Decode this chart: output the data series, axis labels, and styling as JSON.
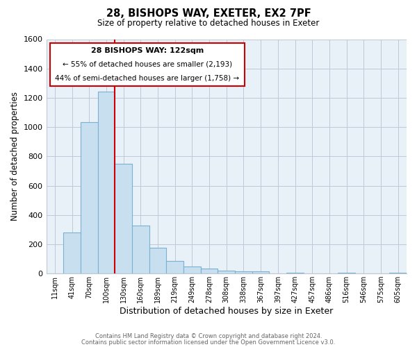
{
  "title1": "28, BISHOPS WAY, EXETER, EX2 7PF",
  "title2": "Size of property relative to detached houses in Exeter",
  "xlabel": "Distribution of detached houses by size in Exeter",
  "ylabel": "Number of detached properties",
  "bin_labels": [
    "11sqm",
    "41sqm",
    "70sqm",
    "100sqm",
    "130sqm",
    "160sqm",
    "189sqm",
    "219sqm",
    "249sqm",
    "278sqm",
    "308sqm",
    "338sqm",
    "367sqm",
    "397sqm",
    "427sqm",
    "457sqm",
    "486sqm",
    "516sqm",
    "546sqm",
    "575sqm",
    "605sqm"
  ],
  "bar_values": [
    0,
    280,
    1035,
    1240,
    750,
    330,
    175,
    85,
    50,
    35,
    20,
    15,
    15,
    0,
    5,
    0,
    0,
    5,
    0,
    0,
    5
  ],
  "bar_color": "#c8dff0",
  "bar_edge_color": "#7ab0d0",
  "vline_x": 3.5,
  "vline_color": "#cc0000",
  "annotation_title": "28 BISHOPS WAY: 122sqm",
  "annotation_line1": "← 55% of detached houses are smaller (2,193)",
  "annotation_line2": "44% of semi-detached houses are larger (1,758) →",
  "annotation_box_color": "#ffffff",
  "annotation_box_edge": "#cc0000",
  "ylim": [
    0,
    1600
  ],
  "yticks": [
    0,
    200,
    400,
    600,
    800,
    1000,
    1200,
    1400,
    1600
  ],
  "footer1": "Contains HM Land Registry data © Crown copyright and database right 2024.",
  "footer2": "Contains public sector information licensed under the Open Government Licence v3.0.",
  "bg_color": "#ffffff",
  "plot_bg_color": "#e8f0f8",
  "grid_color": "#c0c8d8"
}
